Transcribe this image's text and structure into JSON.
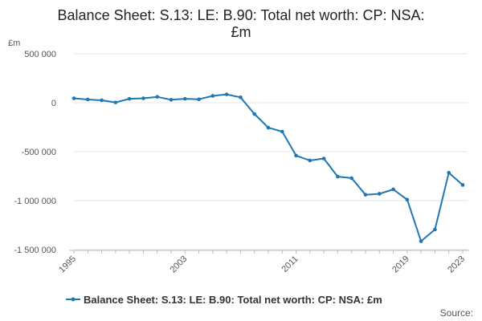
{
  "chart_data": {
    "type": "line",
    "title_lines": [
      "Balance Sheet: S.13: LE: B.90: Total net worth: CP: NSA:",
      "£m"
    ],
    "ylabel": "£m",
    "xlabel": "",
    "x_tick_labels": [
      "1995",
      "2003",
      "2011",
      "2019",
      "2023"
    ],
    "y_tick_labels": [
      "500 000",
      "0",
      "-500 000",
      "-1 000 000",
      "-1 500 000"
    ],
    "y_ticks": [
      500000,
      0,
      -500000,
      -1000000,
      -1500000
    ],
    "ylim": [
      -1500000,
      500000
    ],
    "xlim": [
      1995,
      2023
    ],
    "grid": true,
    "legend_position": "bottom",
    "source_label": "Source:",
    "series": [
      {
        "name": "Balance Sheet: S.13: LE: B.90: Total net worth: CP: NSA: £m",
        "color": "#1f77b4",
        "x": [
          1995,
          1996,
          1997,
          1998,
          1999,
          2000,
          2001,
          2002,
          2003,
          2004,
          2005,
          2006,
          2007,
          2008,
          2009,
          2010,
          2011,
          2012,
          2013,
          2014,
          2015,
          2016,
          2017,
          2018,
          2019,
          2020,
          2021,
          2022,
          2023
        ],
        "values": [
          45000,
          33000,
          25000,
          3000,
          40000,
          45000,
          60000,
          30000,
          40000,
          35000,
          70000,
          85000,
          55000,
          -115000,
          -255000,
          -295000,
          -540000,
          -590000,
          -570000,
          -755000,
          -770000,
          -940000,
          -930000,
          -885000,
          -990000,
          -1415000,
          -1295000,
          -715000,
          -840000
        ]
      }
    ]
  }
}
